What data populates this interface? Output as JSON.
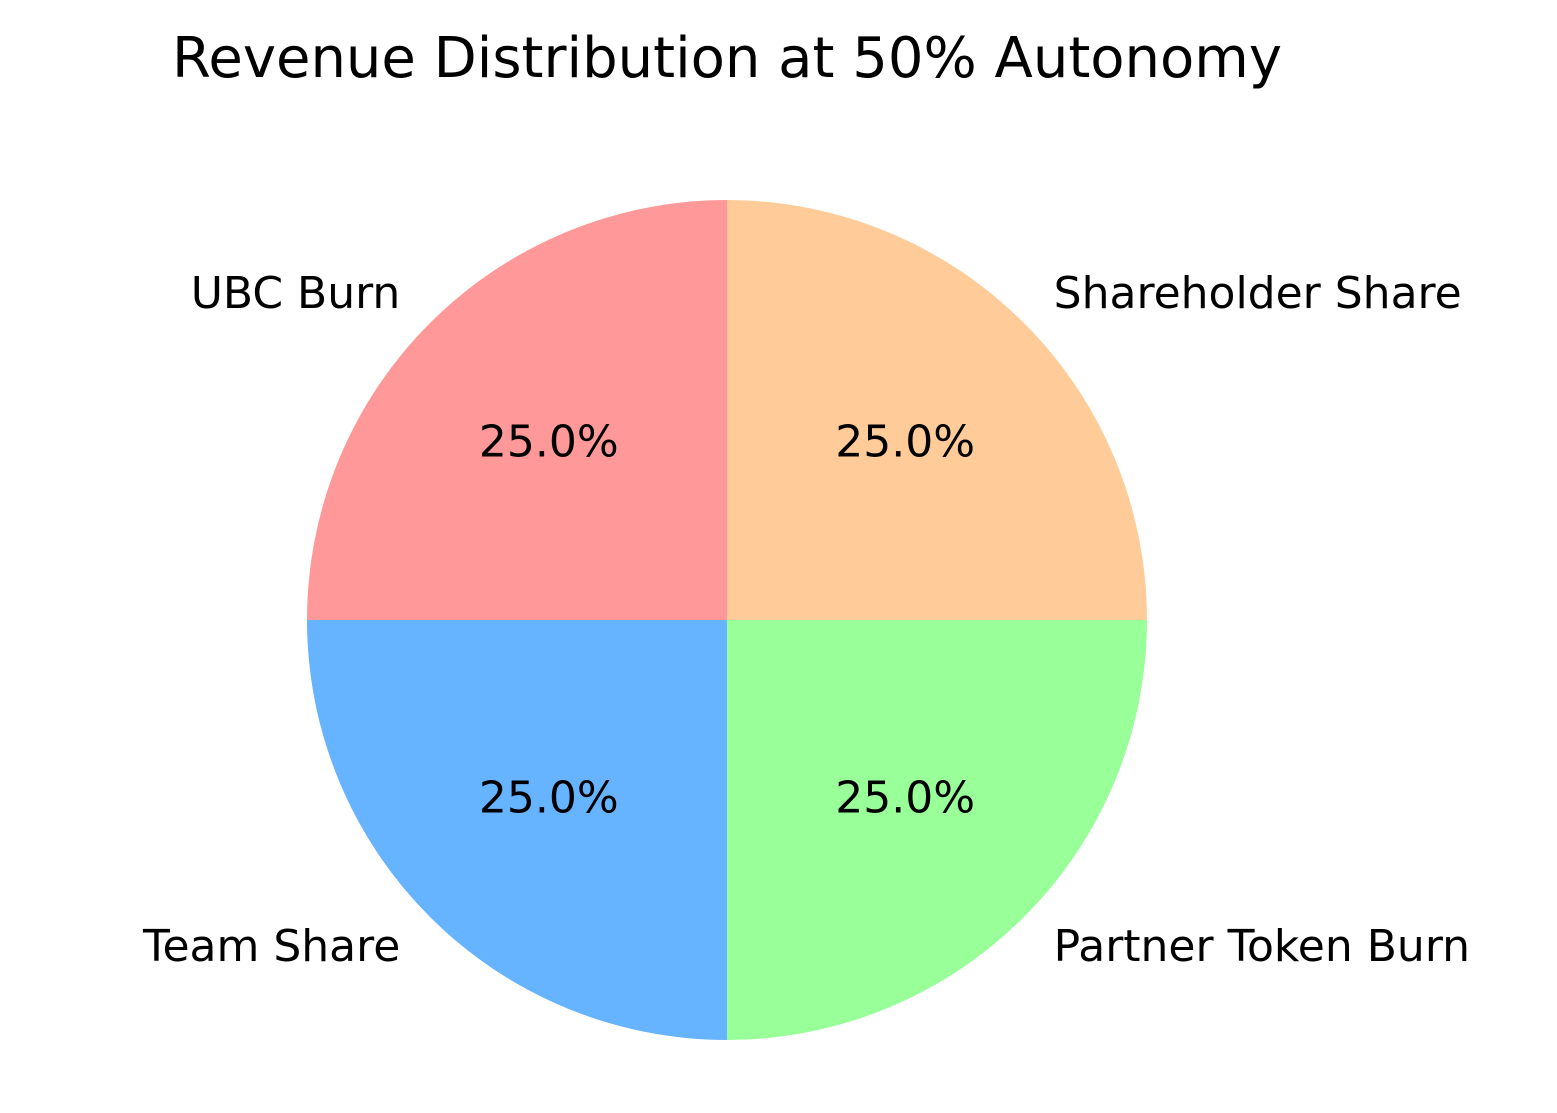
{
  "chart_data": {
    "type": "pie",
    "title": "Revenue Distribution at 50% Autonomy",
    "start_angle_deg": 90,
    "direction": "clockwise",
    "slices": [
      {
        "label": "Shareholder Share",
        "value": 25.0,
        "percent_label": "25.0%",
        "color": "#ffcc99"
      },
      {
        "label": "Partner Token Burn",
        "value": 25.0,
        "percent_label": "25.0%",
        "color": "#99ff99"
      },
      {
        "label": "Team Share",
        "value": 25.0,
        "percent_label": "25.0%",
        "color": "#66b3ff"
      },
      {
        "label": "UBC Burn",
        "value": 25.0,
        "percent_label": "25.0%",
        "color": "#ff9999"
      }
    ]
  }
}
